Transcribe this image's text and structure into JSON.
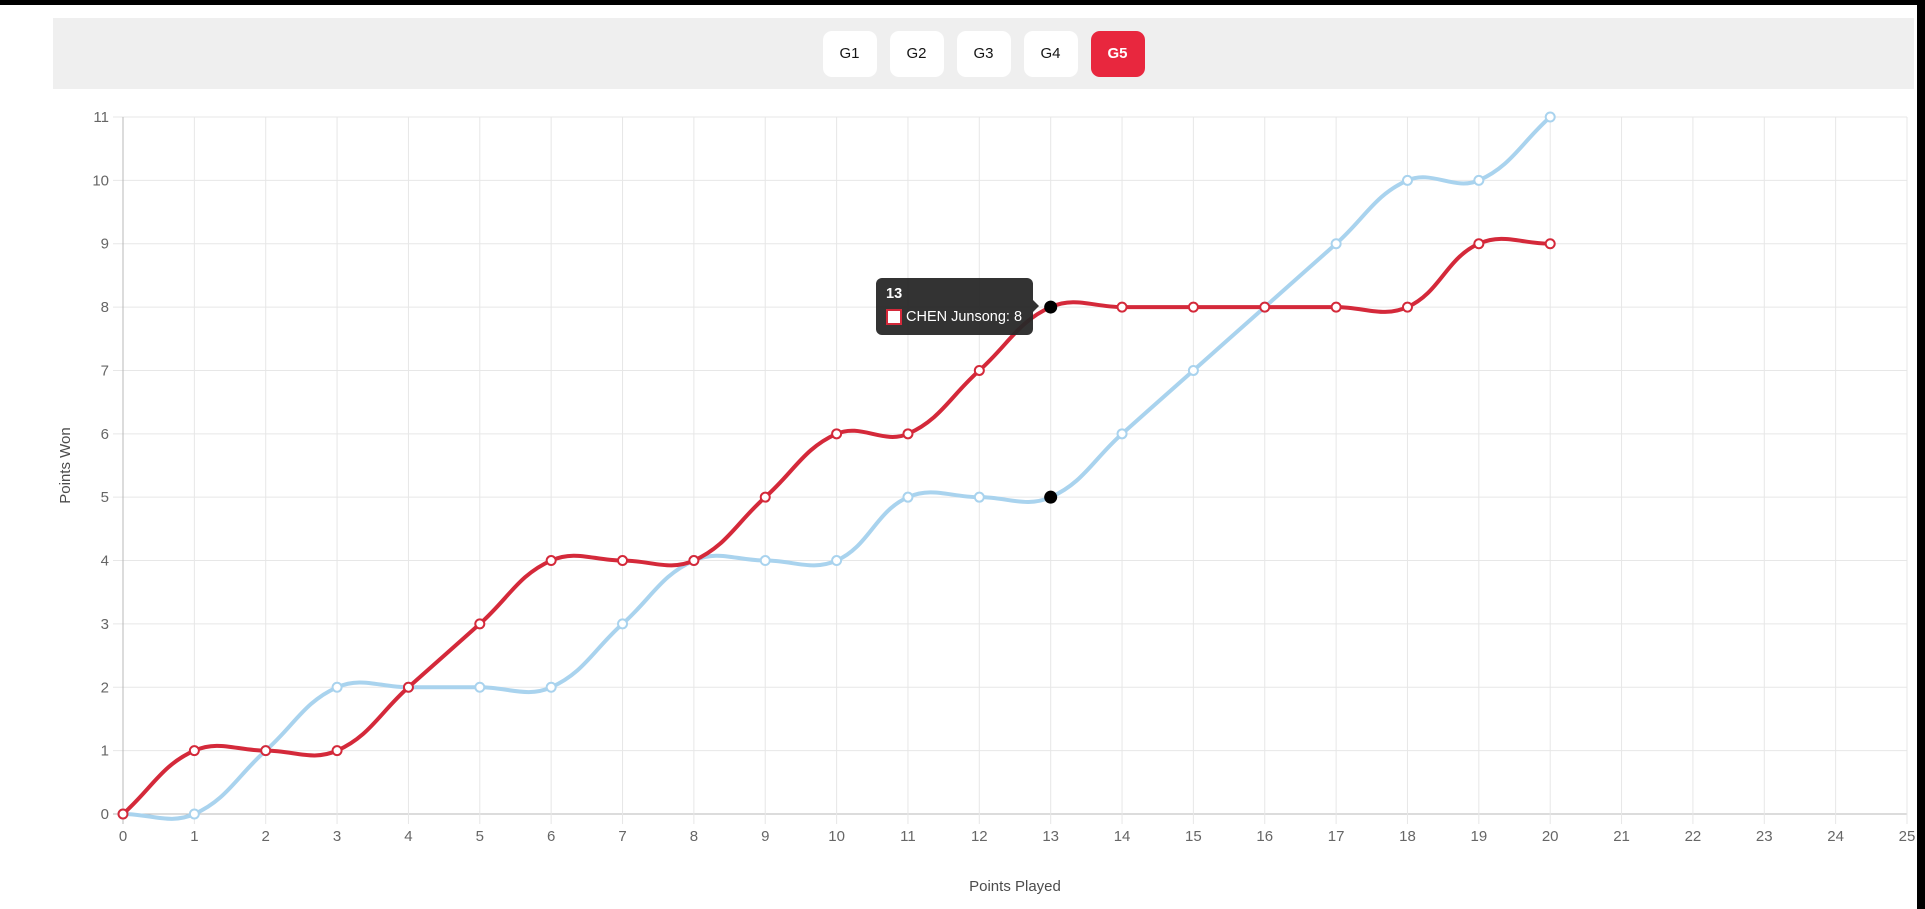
{
  "window": {
    "top_edge_color": "#000000",
    "right_edge_color": "#000000",
    "background": "#ffffff"
  },
  "tabs": {
    "bar_background": "#efefef",
    "active_background": "#e8273e",
    "inactive_background": "#ffffff",
    "items": [
      {
        "label": "G1",
        "active": false
      },
      {
        "label": "G2",
        "active": false
      },
      {
        "label": "G3",
        "active": false
      },
      {
        "label": "G4",
        "active": false
      },
      {
        "label": "G5",
        "active": true
      }
    ]
  },
  "chart_data": {
    "type": "line",
    "title": "",
    "xlabel": "Points Played",
    "ylabel": "Points Won",
    "xlim": [
      0,
      25
    ],
    "ylim": [
      0,
      11
    ],
    "x_ticks": [
      0,
      1,
      2,
      3,
      4,
      5,
      6,
      7,
      8,
      9,
      10,
      11,
      12,
      13,
      14,
      15,
      16,
      17,
      18,
      19,
      20,
      21,
      22,
      23,
      24,
      25
    ],
    "y_ticks": [
      0,
      1,
      2,
      3,
      4,
      5,
      6,
      7,
      8,
      9,
      10,
      11
    ],
    "grid": true,
    "legend_position": "none",
    "x": [
      0,
      1,
      2,
      3,
      4,
      5,
      6,
      7,
      8,
      9,
      10,
      11,
      12,
      13,
      14,
      15,
      16,
      17,
      18,
      19,
      20
    ],
    "series": [
      {
        "id": "opponent",
        "name": "",
        "color": "#a9d3ee",
        "values": [
          0,
          0,
          1,
          2,
          2,
          2,
          2,
          3,
          4,
          4,
          4,
          5,
          5,
          5,
          6,
          7,
          8,
          9,
          10,
          10,
          11
        ]
      },
      {
        "id": "chen-junsong",
        "name": "CHEN Junsong",
        "color": "#d4293a",
        "values": [
          0,
          1,
          1,
          1,
          2,
          3,
          4,
          4,
          4,
          5,
          6,
          6,
          7,
          8,
          8,
          8,
          8,
          8,
          8,
          9,
          9
        ]
      }
    ],
    "highlighted_points": [
      {
        "series": "chen-junsong",
        "x": 13,
        "y": 8
      },
      {
        "series": "opponent",
        "x": 13,
        "y": 5
      }
    ],
    "grid_color": "#e7e7e7",
    "zero_line_color": "#b8b8b8",
    "tick_label_color": "#666666",
    "axis_title_color": "#4d4d4d"
  },
  "tooltip": {
    "title": "13",
    "entry": {
      "text": "CHEN Junsong: 8",
      "box_fill": "#ffffff",
      "box_border_color": "#d4293a"
    },
    "background": "#282828"
  }
}
